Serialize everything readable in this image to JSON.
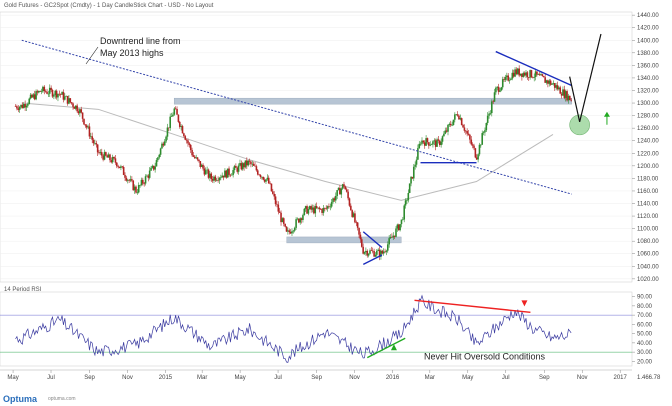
{
  "header": {
    "title": "Gold Futures - GC2Spot (Cmdty) - 1 Day CandleStick Chart - USD - No Layout"
  },
  "rsi_panel": {
    "title": "14 Period RSI",
    "bottom_readout": "1.466.78"
  },
  "footer": {
    "logo": "Optuma",
    "logo_sub": "optuma.com"
  },
  "annotations": {
    "downtrend": "Downtrend line from May 2013 highs",
    "downtrend_line1": "Downtrend line from",
    "downtrend_line2": "May 2013 highs",
    "oversold": "Never Hit Oversold Conditions"
  },
  "colors": {
    "bull_candle": "#2e8b2e",
    "bear_candle": "#b22222",
    "trendline": "#3344aa",
    "support_zone": "#b0bfd0",
    "ma_line": "#bbbbbb",
    "rsi_line": "#3a3aa0",
    "divergence_red": "#ee2222",
    "divergence_green": "#22aa22",
    "circle_fill": "#9ed69e"
  },
  "chart_data": [
    {
      "type": "candlestick",
      "title": "Gold Futures - GC2Spot (Cmdty) - 1 Day CandleStick Chart - USD - No Layout",
      "x_tick_labels": [
        "May",
        "Jul",
        "Sep",
        "Nov",
        "2015",
        "Mar",
        "May",
        "Jul",
        "Sep",
        "Nov",
        "2016",
        "Mar",
        "May",
        "Jul",
        "Sep",
        "Nov",
        "2017"
      ],
      "y_tick_labels": [
        "1020.00",
        "1040.00",
        "1060.00",
        "1080.00",
        "1100.00",
        "1120.00",
        "1140.00",
        "1160.00",
        "1180.00",
        "1200.00",
        "1220.00",
        "1240.00",
        "1260.00",
        "1280.00",
        "1300.00",
        "1320.00",
        "1340.00",
        "1360.00",
        "1380.00",
        "1400.00",
        "1420.00",
        "1440.00"
      ],
      "ylim": [
        1015,
        1445
      ],
      "grid": true,
      "approx_close_path": [
        {
          "date": "2014-05",
          "close": 1295
        },
        {
          "date": "2014-06",
          "close": 1320
        },
        {
          "date": "2014-07",
          "close": 1315
        },
        {
          "date": "2014-08",
          "close": 1290
        },
        {
          "date": "2014-09",
          "close": 1220
        },
        {
          "date": "2014-10",
          "close": 1205
        },
        {
          "date": "2014-11",
          "close": 1160
        },
        {
          "date": "2014-12",
          "close": 1200
        },
        {
          "date": "2015-01",
          "close": 1290
        },
        {
          "date": "2015-02",
          "close": 1215
        },
        {
          "date": "2015-03",
          "close": 1180
        },
        {
          "date": "2015-04",
          "close": 1190
        },
        {
          "date": "2015-05",
          "close": 1205
        },
        {
          "date": "2015-06",
          "close": 1175
        },
        {
          "date": "2015-07",
          "close": 1090
        },
        {
          "date": "2015-08",
          "close": 1130
        },
        {
          "date": "2015-09",
          "close": 1130
        },
        {
          "date": "2015-10",
          "close": 1170
        },
        {
          "date": "2015-11",
          "close": 1065
        },
        {
          "date": "2015-12",
          "close": 1060
        },
        {
          "date": "2016-01",
          "close": 1110
        },
        {
          "date": "2016-02",
          "close": 1240
        },
        {
          "date": "2016-03",
          "close": 1235
        },
        {
          "date": "2016-04",
          "close": 1285
        },
        {
          "date": "2016-05",
          "close": 1215
        },
        {
          "date": "2016-06",
          "close": 1320
        },
        {
          "date": "2016-07",
          "close": 1350
        },
        {
          "date": "2016-08",
          "close": 1345
        },
        {
          "date": "2016-09",
          "close": 1330
        },
        {
          "date": "2016-10",
          "close": 1305
        }
      ],
      "moving_average_path": [
        {
          "date": "2014-05",
          "value": 1300
        },
        {
          "date": "2014-09",
          "value": 1290
        },
        {
          "date": "2015-01",
          "value": 1250
        },
        {
          "date": "2015-05",
          "value": 1210
        },
        {
          "date": "2015-09",
          "value": 1175
        },
        {
          "date": "2016-01",
          "value": 1145
        },
        {
          "date": "2016-05",
          "value": 1175
        },
        {
          "date": "2016-09",
          "value": 1250
        }
      ],
      "downtrend_line": {
        "from": {
          "date": "2014-05",
          "value": 1400
        },
        "to": {
          "date": "2016-10",
          "value": 1155
        }
      },
      "support_zones": [
        {
          "from": "2015-01",
          "to": "2016-10",
          "value": 1303
        },
        {
          "from": "2015-07",
          "to": "2016-01",
          "value": 1082
        }
      ],
      "support_lines": [
        {
          "from": "2016-02",
          "to": "2016-05",
          "value": 1205
        }
      ],
      "channel_lines": [
        {
          "from": {
            "date": "2015-11",
            "value": 1095
          },
          "to": {
            "date": "2015-12",
            "value": 1070
          }
        },
        {
          "from": {
            "date": "2015-11",
            "value": 1043
          },
          "to": {
            "date": "2015-12",
            "value": 1058
          }
        },
        {
          "from": {
            "date": "2016-06",
            "value": 1382
          },
          "to": {
            "date": "2016-10",
            "value": 1328
          }
        }
      ],
      "projection_path": [
        {
          "date": "2016-10",
          "value": 1342
        },
        {
          "date": "2016-10",
          "value": 1270
        },
        {
          "date": "2016-11",
          "value": 1410
        }
      ],
      "highlight_circle": {
        "date": "2016-10",
        "value": 1270
      }
    },
    {
      "type": "line",
      "title": "14 Period RSI",
      "y_tick_labels": [
        "20.00",
        "30.00",
        "40.00",
        "50.00",
        "60.00",
        "70.00",
        "80.00",
        "90.00"
      ],
      "ylim": [
        15,
        95
      ],
      "reference_lines": [
        70,
        30
      ],
      "approx_path": [
        {
          "date": "2014-05",
          "value": 45
        },
        {
          "date": "2014-07",
          "value": 65
        },
        {
          "date": "2014-09",
          "value": 30
        },
        {
          "date": "2014-11",
          "value": 38
        },
        {
          "date": "2015-01",
          "value": 68
        },
        {
          "date": "2015-03",
          "value": 36
        },
        {
          "date": "2015-05",
          "value": 55
        },
        {
          "date": "2015-07",
          "value": 25
        },
        {
          "date": "2015-09",
          "value": 52
        },
        {
          "date": "2015-11",
          "value": 27
        },
        {
          "date": "2016-01",
          "value": 50
        },
        {
          "date": "2016-02",
          "value": 85
        },
        {
          "date": "2016-04",
          "value": 65
        },
        {
          "date": "2016-05",
          "value": 38
        },
        {
          "date": "2016-07",
          "value": 75
        },
        {
          "date": "2016-08",
          "value": 55
        },
        {
          "date": "2016-09",
          "value": 45
        },
        {
          "date": "2016-10",
          "value": 50
        }
      ],
      "divergence_lines": [
        {
          "from": {
            "date": "2016-02",
            "value": 86
          },
          "to": {
            "date": "2016-07",
            "value": 73
          }
        },
        {
          "from": {
            "date": "2015-11",
            "value": 24
          },
          "to": {
            "date": "2016-01",
            "value": 45
          }
        }
      ]
    }
  ]
}
